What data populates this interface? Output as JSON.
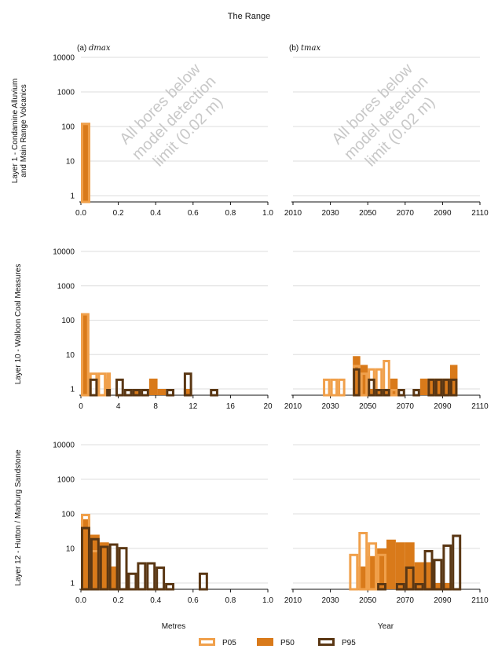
{
  "figure": {
    "title": "The Range",
    "x_label_left": "Metres",
    "x_label_right": "Year",
    "colors": {
      "p05": "#f0a04b",
      "p50": "#d97a1a",
      "p95": "#5a3714",
      "grid": "#dddddd",
      "watermark": "#c8c8c8"
    },
    "legend": [
      {
        "key": "p05",
        "label": "P05"
      },
      {
        "key": "p50",
        "label": "P50"
      },
      {
        "key": "p95",
        "label": "P95"
      }
    ],
    "panel_titles": {
      "left_prefix": "(a)",
      "left_var": "dmax",
      "right_prefix": "(b)",
      "right_var": "tmax"
    },
    "watermark_lines": [
      "All bores below",
      "model detection",
      "limit (0.02 m)"
    ],
    "row_labels": [
      [
        "Layer 1 - Condamine Alluvium",
        "and Main Range Volcanics"
      ],
      [
        "Layer 10 - Walloon Coal Measures"
      ],
      [
        "Layer 12 - Hutton / Marburg Sandstone"
      ]
    ]
  },
  "chart_data": [
    {
      "type": "bar",
      "row": 0,
      "col": 0,
      "title": "(a) dmax",
      "xlim": [
        0,
        1.0
      ],
      "xticks": [
        0.0,
        0.2,
        0.4,
        0.6,
        0.8,
        1.0
      ],
      "xtick_labels": [
        "0.0",
        "0.2",
        "0.4",
        "0.6",
        "0.8",
        "1.0"
      ],
      "yscale": "log",
      "ylim": [
        0.7,
        20000
      ],
      "yticks": [
        1,
        10,
        100,
        1000,
        10000
      ],
      "ytick_labels": [
        "1",
        "10",
        "100",
        "1000",
        "10000"
      ],
      "bin_width": 0.05,
      "series": [
        {
          "name": "P05",
          "bins": [
            {
              "x0": 0.0,
              "x1": 0.05,
              "count": 128
            }
          ]
        },
        {
          "name": "P50",
          "bins": [
            {
              "x0": 0.0,
              "x1": 0.05,
              "count": 128
            }
          ]
        },
        {
          "name": "P95",
          "bins": []
        }
      ],
      "annotation": "All bores below model detection limit (0.02 m)"
    },
    {
      "type": "bar",
      "row": 0,
      "col": 1,
      "title": "(b) tmax",
      "xlim": [
        2010,
        2110
      ],
      "xticks": [
        2010,
        2030,
        2050,
        2070,
        2090,
        2110
      ],
      "xtick_labels": [
        "2010",
        "2030",
        "2050",
        "2070",
        "2090",
        "2110"
      ],
      "yscale": "log",
      "ylim": [
        0.7,
        20000
      ],
      "yticks": [
        1,
        10,
        100,
        1000,
        10000
      ],
      "ytick_labels": [
        "",
        "",
        "",
        "",
        ""
      ],
      "bin_width": 4,
      "series": [
        {
          "name": "P05",
          "bins": []
        },
        {
          "name": "P50",
          "bins": []
        },
        {
          "name": "P95",
          "bins": []
        }
      ],
      "annotation": "All bores below model detection limit (0.02 m)"
    },
    {
      "type": "bar",
      "row": 1,
      "col": 0,
      "title": "",
      "xlim": [
        0,
        20
      ],
      "xticks": [
        0,
        4,
        8,
        12,
        16,
        20
      ],
      "xtick_labels": [
        "0",
        "4",
        "8",
        "12",
        "16",
        "20"
      ],
      "yscale": "log",
      "ylim": [
        0.7,
        20000
      ],
      "yticks": [
        1,
        10,
        100,
        1000,
        10000
      ],
      "ytick_labels": [
        "1",
        "10",
        "100",
        "1000",
        "10000"
      ],
      "bin_width": 0.9,
      "series": [
        {
          "name": "P05",
          "bins": [
            {
              "x0": 0.0,
              "x1": 0.9,
              "count": 160
            },
            {
              "x0": 0.9,
              "x1": 1.8,
              "count": 3
            },
            {
              "x0": 1.8,
              "x1": 2.7,
              "count": 3
            },
            {
              "x0": 2.7,
              "x1": 3.2,
              "count": 3
            }
          ]
        },
        {
          "name": "P50",
          "bins": [
            {
              "x0": 0.0,
              "x1": 0.9,
              "count": 160
            },
            {
              "x0": 2.7,
              "x1": 3.2,
              "count": 2
            },
            {
              "x0": 5.5,
              "x1": 6.4,
              "count": 1
            },
            {
              "x0": 7.3,
              "x1": 8.2,
              "count": 2
            },
            {
              "x0": 8.2,
              "x1": 9.1,
              "count": 1
            },
            {
              "x0": 11.0,
              "x1": 11.9,
              "count": 1
            }
          ]
        },
        {
          "name": "P95",
          "bins": [
            {
              "x0": 0.9,
              "x1": 1.8,
              "count": 2
            },
            {
              "x0": 2.7,
              "x1": 3.2,
              "count": 1
            },
            {
              "x0": 3.7,
              "x1": 4.6,
              "count": 2
            },
            {
              "x0": 4.6,
              "x1": 5.5,
              "count": 1
            },
            {
              "x0": 5.5,
              "x1": 6.4,
              "count": 1
            },
            {
              "x0": 6.4,
              "x1": 7.3,
              "count": 1
            },
            {
              "x0": 9.1,
              "x1": 10.0,
              "count": 1
            },
            {
              "x0": 11.0,
              "x1": 11.9,
              "count": 3
            },
            {
              "x0": 13.8,
              "x1": 14.7,
              "count": 1
            }
          ]
        }
      ]
    },
    {
      "type": "bar",
      "row": 1,
      "col": 1,
      "title": "",
      "xlim": [
        2010,
        2110
      ],
      "xticks": [
        2010,
        2030,
        2050,
        2070,
        2090,
        2110
      ],
      "xtick_labels": [
        "2010",
        "2030",
        "2050",
        "2070",
        "2090",
        "2110"
      ],
      "yscale": "log",
      "ylim": [
        0.7,
        20000
      ],
      "yticks": [
        1,
        10,
        100,
        1000,
        10000
      ],
      "ytick_labels": [
        "",
        "",
        "",
        "",
        ""
      ],
      "bin_width": 4,
      "series": [
        {
          "name": "P05",
          "bins": [
            {
              "x0": 2026,
              "x1": 2030,
              "count": 2
            },
            {
              "x0": 2030,
              "x1": 2034,
              "count": 2
            },
            {
              "x0": 2034,
              "x1": 2038,
              "count": 2
            },
            {
              "x0": 2042,
              "x1": 2046,
              "count": 5
            },
            {
              "x0": 2046,
              "x1": 2050,
              "count": 3
            },
            {
              "x0": 2050,
              "x1": 2054,
              "count": 4
            },
            {
              "x0": 2054,
              "x1": 2058,
              "count": 4
            },
            {
              "x0": 2058,
              "x1": 2062,
              "count": 7
            },
            {
              "x0": 2062,
              "x1": 2066,
              "count": 1
            }
          ]
        },
        {
          "name": "P50",
          "bins": [
            {
              "x0": 2042,
              "x1": 2046,
              "count": 9
            },
            {
              "x0": 2046,
              "x1": 2050,
              "count": 5
            },
            {
              "x0": 2050,
              "x1": 2054,
              "count": 1
            },
            {
              "x0": 2054,
              "x1": 2058,
              "count": 1
            },
            {
              "x0": 2058,
              "x1": 2062,
              "count": 1
            },
            {
              "x0": 2062,
              "x1": 2066,
              "count": 2
            },
            {
              "x0": 2078,
              "x1": 2082,
              "count": 2
            },
            {
              "x0": 2082,
              "x1": 2086,
              "count": 2
            },
            {
              "x0": 2086,
              "x1": 2090,
              "count": 2
            },
            {
              "x0": 2090,
              "x1": 2094,
              "count": 2
            },
            {
              "x0": 2094,
              "x1": 2098,
              "count": 5
            }
          ]
        },
        {
          "name": "P95",
          "bins": [
            {
              "x0": 2042,
              "x1": 2046,
              "count": 4
            },
            {
              "x0": 2050,
              "x1": 2054,
              "count": 2
            },
            {
              "x0": 2054,
              "x1": 2058,
              "count": 1
            },
            {
              "x0": 2058,
              "x1": 2062,
              "count": 1
            },
            {
              "x0": 2066,
              "x1": 2070,
              "count": 1
            },
            {
              "x0": 2074,
              "x1": 2078,
              "count": 1
            },
            {
              "x0": 2082,
              "x1": 2086,
              "count": 2
            },
            {
              "x0": 2086,
              "x1": 2090,
              "count": 2
            },
            {
              "x0": 2090,
              "x1": 2094,
              "count": 2
            },
            {
              "x0": 2094,
              "x1": 2098,
              "count": 2
            }
          ]
        }
      ]
    },
    {
      "type": "bar",
      "row": 2,
      "col": 0,
      "title": "",
      "xlim": [
        0,
        1.0
      ],
      "xticks": [
        0.0,
        0.2,
        0.4,
        0.6,
        0.8,
        1.0
      ],
      "xtick_labels": [
        "0.0",
        "0.2",
        "0.4",
        "0.6",
        "0.8",
        "1.0"
      ],
      "yscale": "log",
      "ylim": [
        0.7,
        20000
      ],
      "yticks": [
        1,
        10,
        100,
        1000,
        10000
      ],
      "ytick_labels": [
        "1",
        "10",
        "100",
        "1000",
        "10000"
      ],
      "bin_width": 0.05,
      "series": [
        {
          "name": "P05",
          "bins": [
            {
              "x0": 0.0,
              "x1": 0.05,
              "count": 100
            },
            {
              "x0": 0.05,
              "x1": 0.1,
              "count": 9
            }
          ]
        },
        {
          "name": "P50",
          "bins": [
            {
              "x0": 0.0,
              "x1": 0.05,
              "count": 70
            },
            {
              "x0": 0.05,
              "x1": 0.1,
              "count": 25
            },
            {
              "x0": 0.1,
              "x1": 0.15,
              "count": 15
            },
            {
              "x0": 0.15,
              "x1": 0.2,
              "count": 3
            }
          ]
        },
        {
          "name": "P95",
          "bins": [
            {
              "x0": 0.0,
              "x1": 0.05,
              "count": 42
            },
            {
              "x0": 0.05,
              "x1": 0.1,
              "count": 20
            },
            {
              "x0": 0.1,
              "x1": 0.15,
              "count": 12
            },
            {
              "x0": 0.15,
              "x1": 0.2,
              "count": 14
            },
            {
              "x0": 0.2,
              "x1": 0.25,
              "count": 11
            },
            {
              "x0": 0.25,
              "x1": 0.3,
              "count": 2
            },
            {
              "x0": 0.3,
              "x1": 0.35,
              "count": 4
            },
            {
              "x0": 0.35,
              "x1": 0.4,
              "count": 4
            },
            {
              "x0": 0.4,
              "x1": 0.45,
              "count": 3
            },
            {
              "x0": 0.45,
              "x1": 0.5,
              "count": 1
            },
            {
              "x0": 0.63,
              "x1": 0.68,
              "count": 2
            }
          ]
        }
      ]
    },
    {
      "type": "bar",
      "row": 2,
      "col": 1,
      "title": "",
      "xlim": [
        2010,
        2110
      ],
      "xticks": [
        2010,
        2030,
        2050,
        2070,
        2090,
        2110
      ],
      "xtick_labels": [
        "2010",
        "2030",
        "2050",
        "2070",
        "2090",
        "2110"
      ],
      "yscale": "log",
      "ylim": [
        0.7,
        20000
      ],
      "yticks": [
        1,
        10,
        100,
        1000,
        10000
      ],
      "ytick_labels": [
        "",
        "",
        "",
        "",
        ""
      ],
      "bin_width": 4.5,
      "series": [
        {
          "name": "P05",
          "bins": [
            {
              "x0": 2040,
              "x1": 2045,
              "count": 7
            },
            {
              "x0": 2045,
              "x1": 2050,
              "count": 30
            },
            {
              "x0": 2050,
              "x1": 2055,
              "count": 15
            },
            {
              "x0": 2055,
              "x1": 2060,
              "count": 7
            }
          ]
        },
        {
          "name": "P50",
          "bins": [
            {
              "x0": 2045,
              "x1": 2050,
              "count": 3
            },
            {
              "x0": 2050,
              "x1": 2055,
              "count": 6
            },
            {
              "x0": 2055,
              "x1": 2060,
              "count": 10
            },
            {
              "x0": 2060,
              "x1": 2065,
              "count": 18
            },
            {
              "x0": 2065,
              "x1": 2070,
              "count": 15
            },
            {
              "x0": 2070,
              "x1": 2075,
              "count": 15
            },
            {
              "x0": 2075,
              "x1": 2080,
              "count": 4
            },
            {
              "x0": 2080,
              "x1": 2085,
              "count": 4
            },
            {
              "x0": 2085,
              "x1": 2090,
              "count": 1
            },
            {
              "x0": 2090,
              "x1": 2095,
              "count": 1
            }
          ]
        },
        {
          "name": "P95",
          "bins": [
            {
              "x0": 2055,
              "x1": 2060,
              "count": 1
            },
            {
              "x0": 2065,
              "x1": 2070,
              "count": 1
            },
            {
              "x0": 2070,
              "x1": 2075,
              "count": 3
            },
            {
              "x0": 2075,
              "x1": 2080,
              "count": 1
            },
            {
              "x0": 2080,
              "x1": 2085,
              "count": 9
            },
            {
              "x0": 2085,
              "x1": 2090,
              "count": 5
            },
            {
              "x0": 2090,
              "x1": 2095,
              "count": 13
            },
            {
              "x0": 2095,
              "x1": 2100,
              "count": 25
            }
          ]
        }
      ]
    }
  ]
}
